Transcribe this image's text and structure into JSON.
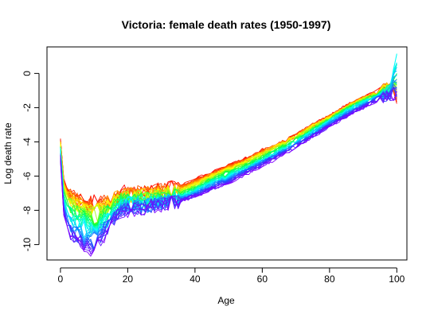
{
  "chart_data": {
    "type": "line",
    "title": "Victoria: female death rates  (1950-1997)",
    "xlabel": "Age",
    "ylabel": "Log death rate",
    "xlim": [
      -4,
      103
    ],
    "ylim": [
      -10.9,
      1.55
    ],
    "x_ticks": [
      0,
      20,
      40,
      60,
      80,
      100
    ],
    "y_ticks": [
      0,
      -2,
      -4,
      -6,
      -8,
      -10
    ],
    "x_tick_labels": [
      "0",
      "20",
      "40",
      "60",
      "80",
      "100"
    ],
    "y_tick_labels": [
      "0",
      "-2",
      "-4",
      "-6",
      "-8",
      "-10"
    ],
    "grid": false,
    "legend": "none",
    "years": {
      "start": 1950,
      "end": 1997
    },
    "palette": "rainbow: red (1950) through yellow, green, cyan, blue to violet (1997)",
    "ages": [
      0,
      1,
      2,
      3,
      5,
      8,
      10,
      12,
      15,
      18,
      20,
      25,
      30,
      35,
      40,
      45,
      50,
      55,
      60,
      65,
      70,
      75,
      80,
      85,
      90,
      95,
      98,
      100
    ],
    "reference_series": [
      {
        "year": 1950,
        "color": "#ff0000",
        "values": [
          -3.9,
          -6.2,
          -6.7,
          -7.0,
          -7.2,
          -7.5,
          -7.5,
          -7.5,
          -7.3,
          -7.0,
          -6.9,
          -6.9,
          -6.8,
          -6.6,
          -6.2,
          -5.8,
          -5.4,
          -5.0,
          -4.5,
          -4.1,
          -3.6,
          -3.0,
          -2.5,
          -1.9,
          -1.4,
          -1.0,
          -0.7,
          -1.5
        ]
      },
      {
        "year": 1966,
        "color": "#ffff00",
        "values": [
          -4.1,
          -6.6,
          -7.1,
          -7.4,
          -7.7,
          -8.0,
          -8.1,
          -8.0,
          -7.6,
          -7.3,
          -7.2,
          -7.2,
          -7.1,
          -6.9,
          -6.5,
          -6.0,
          -5.6,
          -5.2,
          -4.7,
          -4.2,
          -3.7,
          -3.1,
          -2.6,
          -2.0,
          -1.5,
          -1.1,
          -0.8,
          -1.0
        ]
      },
      {
        "year": 1974,
        "color": "#00ff40",
        "values": [
          -4.3,
          -7.0,
          -7.6,
          -7.9,
          -8.2,
          -8.5,
          -8.6,
          -8.4,
          -7.9,
          -7.5,
          -7.4,
          -7.4,
          -7.3,
          -7.1,
          -6.7,
          -6.2,
          -5.8,
          -5.4,
          -4.9,
          -4.4,
          -3.9,
          -3.3,
          -2.7,
          -2.1,
          -1.6,
          -1.2,
          -0.9,
          -0.5
        ]
      },
      {
        "year": 1982,
        "color": "#00ffff",
        "values": [
          -4.5,
          -7.5,
          -8.1,
          -8.5,
          -8.8,
          -9.1,
          -9.2,
          -8.9,
          -8.3,
          -7.8,
          -7.6,
          -7.6,
          -7.5,
          -7.3,
          -6.9,
          -6.4,
          -6.0,
          -5.6,
          -5.1,
          -4.6,
          -4.0,
          -3.4,
          -2.8,
          -2.2,
          -1.7,
          -1.3,
          -1.0,
          1.0
        ]
      },
      {
        "year": 1990,
        "color": "#2050ff",
        "values": [
          -4.8,
          -7.9,
          -8.6,
          -9.1,
          -9.5,
          -9.7,
          -9.9,
          -9.4,
          -8.6,
          -8.0,
          -7.8,
          -7.8,
          -7.6,
          -7.4,
          -7.1,
          -6.6,
          -6.2,
          -5.7,
          -5.2,
          -4.7,
          -4.2,
          -3.6,
          -3.0,
          -2.4,
          -1.9,
          -1.4,
          -1.2,
          -1.0
        ]
      },
      {
        "year": 1997,
        "color": "#8000ff",
        "values": [
          -5.0,
          -8.3,
          -9.0,
          -9.5,
          -10.0,
          -10.2,
          -10.3,
          -9.8,
          -8.9,
          -8.2,
          -8.0,
          -7.9,
          -7.7,
          -7.5,
          -7.2,
          -6.8,
          -6.4,
          -5.9,
          -5.4,
          -4.9,
          -4.3,
          -3.7,
          -3.1,
          -2.5,
          -2.0,
          -1.5,
          -1.3,
          -1.2
        ]
      }
    ]
  }
}
